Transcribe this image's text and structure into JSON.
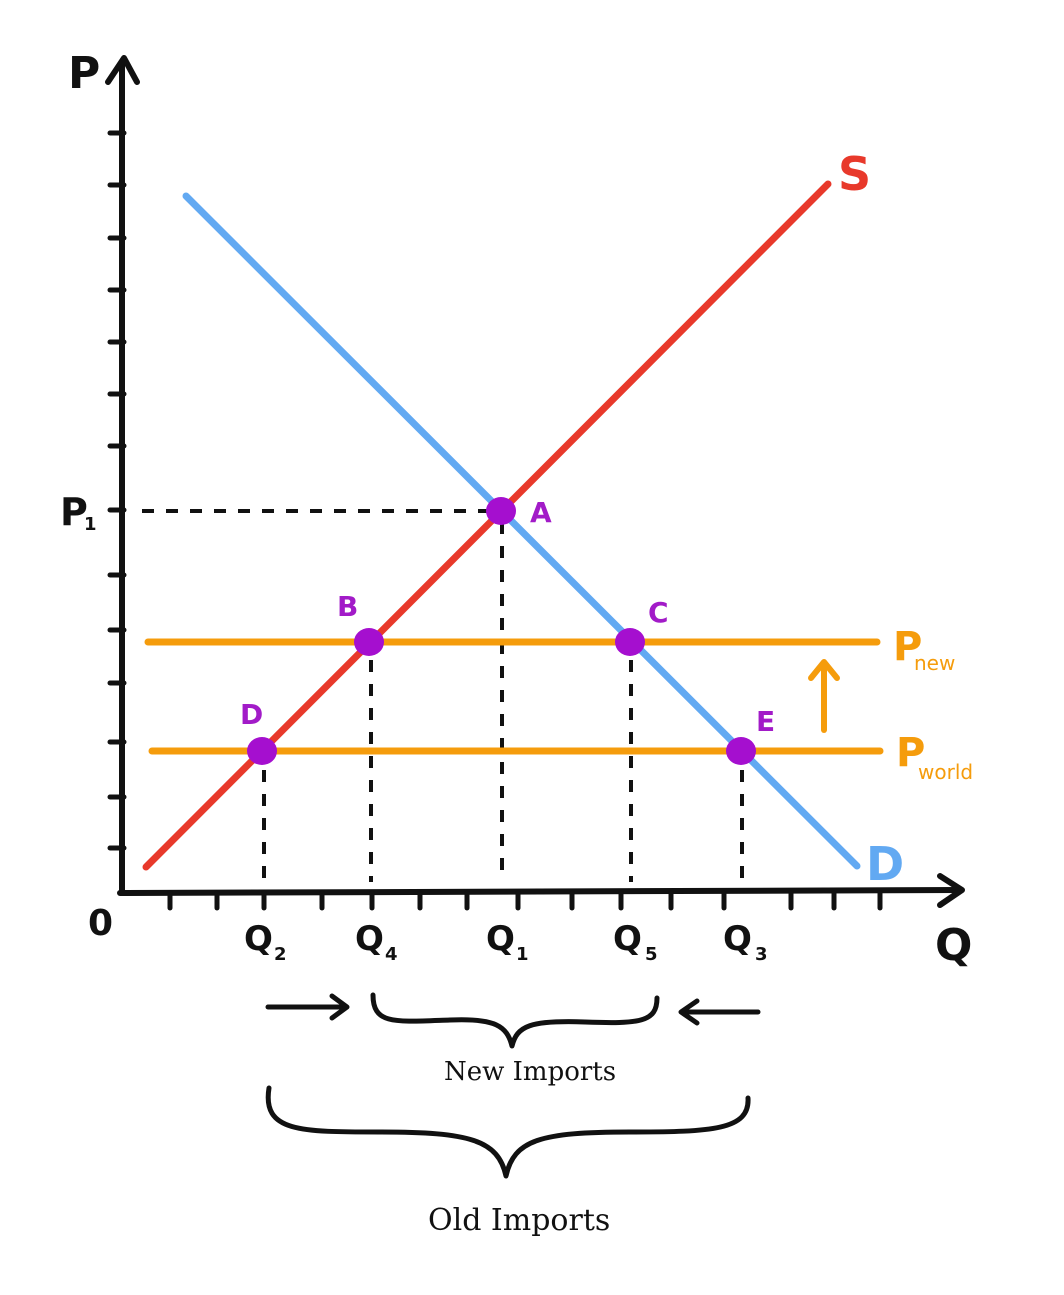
{
  "colors": {
    "axis": "#111111",
    "supply": "#e8392b",
    "demand": "#62a9f2",
    "price_line": "#f59c0c",
    "point": "#a50fcf",
    "point_label": "#a21bc8",
    "dashes": "#111111"
  },
  "axes": {
    "y_label": "P",
    "x_label": "Q",
    "origin_label": "0",
    "p1_label": "P",
    "p1_sub": "1"
  },
  "curves": {
    "supply_label": "S",
    "demand_label": "D"
  },
  "price_lines": {
    "new": {
      "label": "P",
      "sub": "new"
    },
    "world": {
      "label": "P",
      "sub": "world"
    },
    "arrow": "up-arrow"
  },
  "points": {
    "A": "A",
    "B": "B",
    "C": "C",
    "D": "D",
    "E": "E"
  },
  "quantities": {
    "q2": {
      "label": "Q",
      "sub": "2"
    },
    "q4": {
      "label": "Q",
      "sub": "4"
    },
    "q1": {
      "label": "Q",
      "sub": "1"
    },
    "q5": {
      "label": "Q",
      "sub": "5"
    },
    "q3": {
      "label": "Q",
      "sub": "3"
    }
  },
  "annotations": {
    "new_imports": "New Imports",
    "old_imports": "Old Imports",
    "left_arrow_icon": "right-arrow-icon",
    "right_arrow_icon": "left-arrow-icon"
  }
}
